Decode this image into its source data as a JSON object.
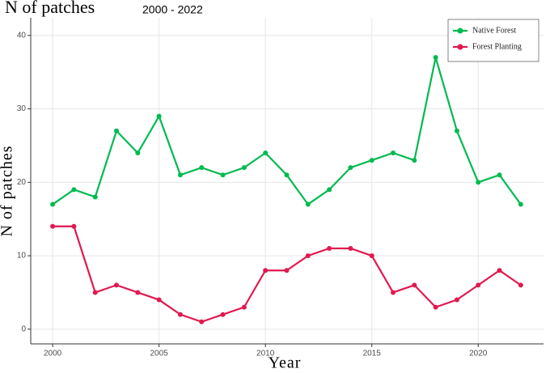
{
  "chart_data": {
    "type": "line",
    "title": "N of patches",
    "subtitle": "2000 - 2022",
    "x_label": "Year",
    "y_label": "N of patches",
    "x": [
      2000,
      2001,
      2002,
      2003,
      2004,
      2005,
      2006,
      2007,
      2008,
      2009,
      2010,
      2011,
      2012,
      2013,
      2014,
      2015,
      2016,
      2017,
      2018,
      2019,
      2020,
      2021,
      2022
    ],
    "series": [
      {
        "name": "Native Forest",
        "color": "#00ba50",
        "values": [
          17,
          19,
          18,
          27,
          24,
          29,
          21,
          22,
          21,
          22,
          24,
          21,
          17,
          19,
          22,
          23,
          24,
          23,
          37,
          27,
          20,
          21,
          17
        ]
      },
      {
        "name": "Forest Planting",
        "color": "#e0194f",
        "values": [
          14,
          14,
          5,
          6,
          5,
          4,
          2,
          1,
          2,
          3,
          8,
          8,
          10,
          11,
          11,
          10,
          5,
          6,
          3,
          4,
          6,
          8,
          6
        ]
      }
    ],
    "xlim": [
      1998.97,
      2023.07
    ],
    "xticks": [
      2000,
      2005,
      2010,
      2015,
      2020
    ],
    "ylim": [
      -2,
      42.4
    ],
    "yticks": [
      0,
      10,
      20,
      30,
      40
    ],
    "grid": true,
    "legend": "top-right"
  }
}
